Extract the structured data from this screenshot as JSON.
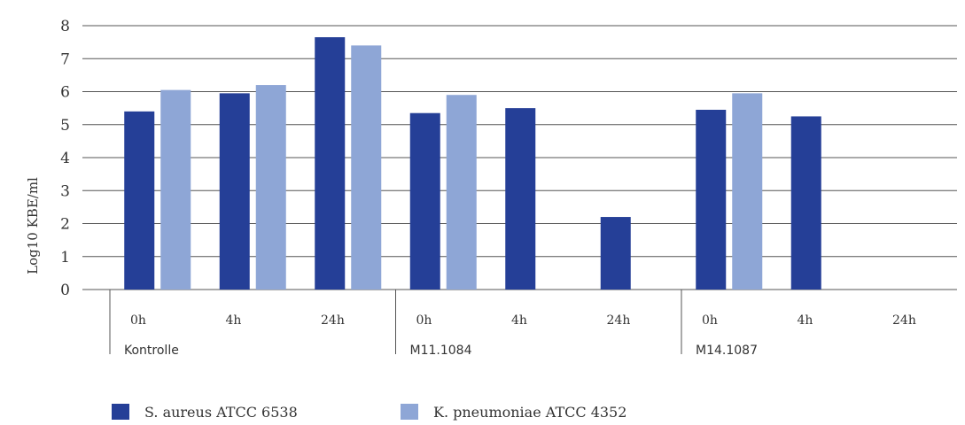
{
  "chart_data": {
    "type": "bar",
    "ylabel": "Log10 KBE/ml",
    "ylim": [
      0,
      8
    ],
    "yticks": [
      "0",
      "1",
      "2",
      "3",
      "4",
      "5",
      "6",
      "7",
      "8"
    ],
    "grid": true,
    "legend_position": "bottom-left",
    "groups": [
      {
        "label": "Kontrolle",
        "categories": [
          "0h",
          "4h",
          "24h"
        ]
      },
      {
        "label": "M11.1084",
        "categories": [
          "0h",
          "4h",
          "24h"
        ]
      },
      {
        "label": "M14.1087",
        "categories": [
          "0h",
          "4h",
          "24h"
        ]
      }
    ],
    "series": [
      {
        "name": "S. aureus ATCC 6538",
        "color": "#253f97",
        "values": [
          5.4,
          5.95,
          7.65,
          5.35,
          5.5,
          2.2,
          5.45,
          5.25,
          null
        ]
      },
      {
        "name": "K. pneumoniae ATCC 4352",
        "color": "#8ea6d6",
        "values": [
          6.05,
          6.2,
          7.4,
          5.9,
          null,
          null,
          5.95,
          null,
          null
        ]
      }
    ]
  }
}
